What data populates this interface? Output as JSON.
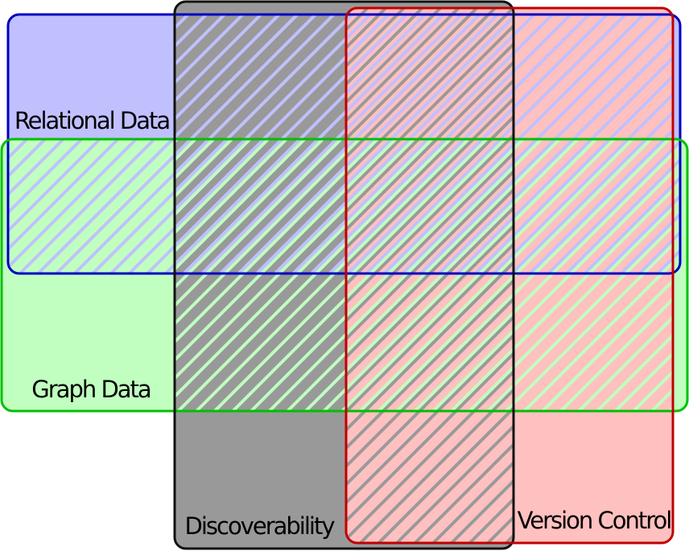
{
  "sets": [
    {
      "label": "Relational Data"
    },
    {
      "label": "Graph Data"
    },
    {
      "label": "Discoverability"
    },
    {
      "label": "Version Control"
    }
  ]
}
